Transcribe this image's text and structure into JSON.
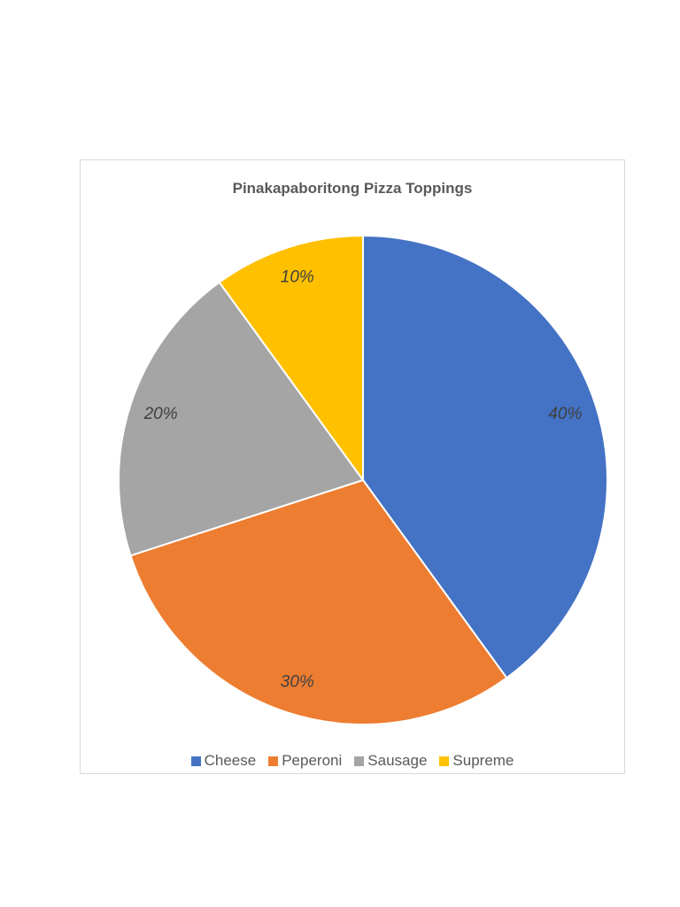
{
  "chart_data": {
    "type": "pie",
    "title": "Pinakapaboritong Pizza Toppings",
    "categories": [
      "Cheese",
      "Peperoni",
      "Sausage",
      "Supreme"
    ],
    "values": [
      40,
      30,
      20,
      10
    ],
    "labels": [
      "40%",
      "30%",
      "20%",
      "10%"
    ],
    "colors": [
      "#4472C4",
      "#ED7D31",
      "#A5A5A5",
      "#FFC000"
    ],
    "legend_position": "bottom",
    "label_style": "italic"
  }
}
